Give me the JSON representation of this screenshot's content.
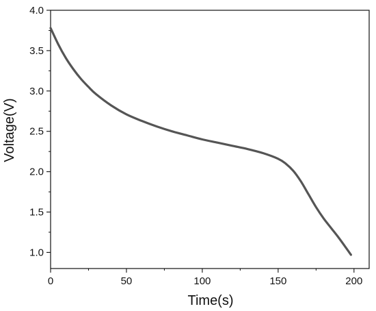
{
  "chart_data": {
    "type": "line",
    "title": "",
    "xlabel": "Time(s)",
    "ylabel": "Voltage(V)",
    "xlim": [
      0,
      210
    ],
    "ylim": [
      0.8,
      4.0
    ],
    "x_ticks": [
      0,
      50,
      100,
      150,
      200
    ],
    "y_ticks": [
      1.0,
      1.5,
      2.0,
      2.5,
      3.0,
      3.5,
      4.0
    ],
    "x_tick_labels": [
      "0",
      "50",
      "100",
      "150",
      "200"
    ],
    "y_tick_labels": [
      "1.0",
      "1.5",
      "2.0",
      "2.5",
      "3.0",
      "3.5",
      "4.0"
    ],
    "grid": false,
    "legend": "none",
    "line_color": "#555555",
    "series": [
      {
        "x": [
          0,
          5,
          10,
          15,
          20,
          25,
          30,
          40,
          50,
          60,
          70,
          80,
          90,
          100,
          110,
          120,
          130,
          140,
          150,
          155,
          160,
          165,
          170,
          175,
          180,
          185,
          190,
          195,
          198
        ],
        "y": [
          3.78,
          3.58,
          3.41,
          3.27,
          3.15,
          3.05,
          2.96,
          2.82,
          2.71,
          2.63,
          2.56,
          2.5,
          2.45,
          2.4,
          2.36,
          2.32,
          2.28,
          2.23,
          2.16,
          2.1,
          2.01,
          1.88,
          1.72,
          1.56,
          1.42,
          1.3,
          1.18,
          1.05,
          0.97
        ]
      }
    ]
  }
}
